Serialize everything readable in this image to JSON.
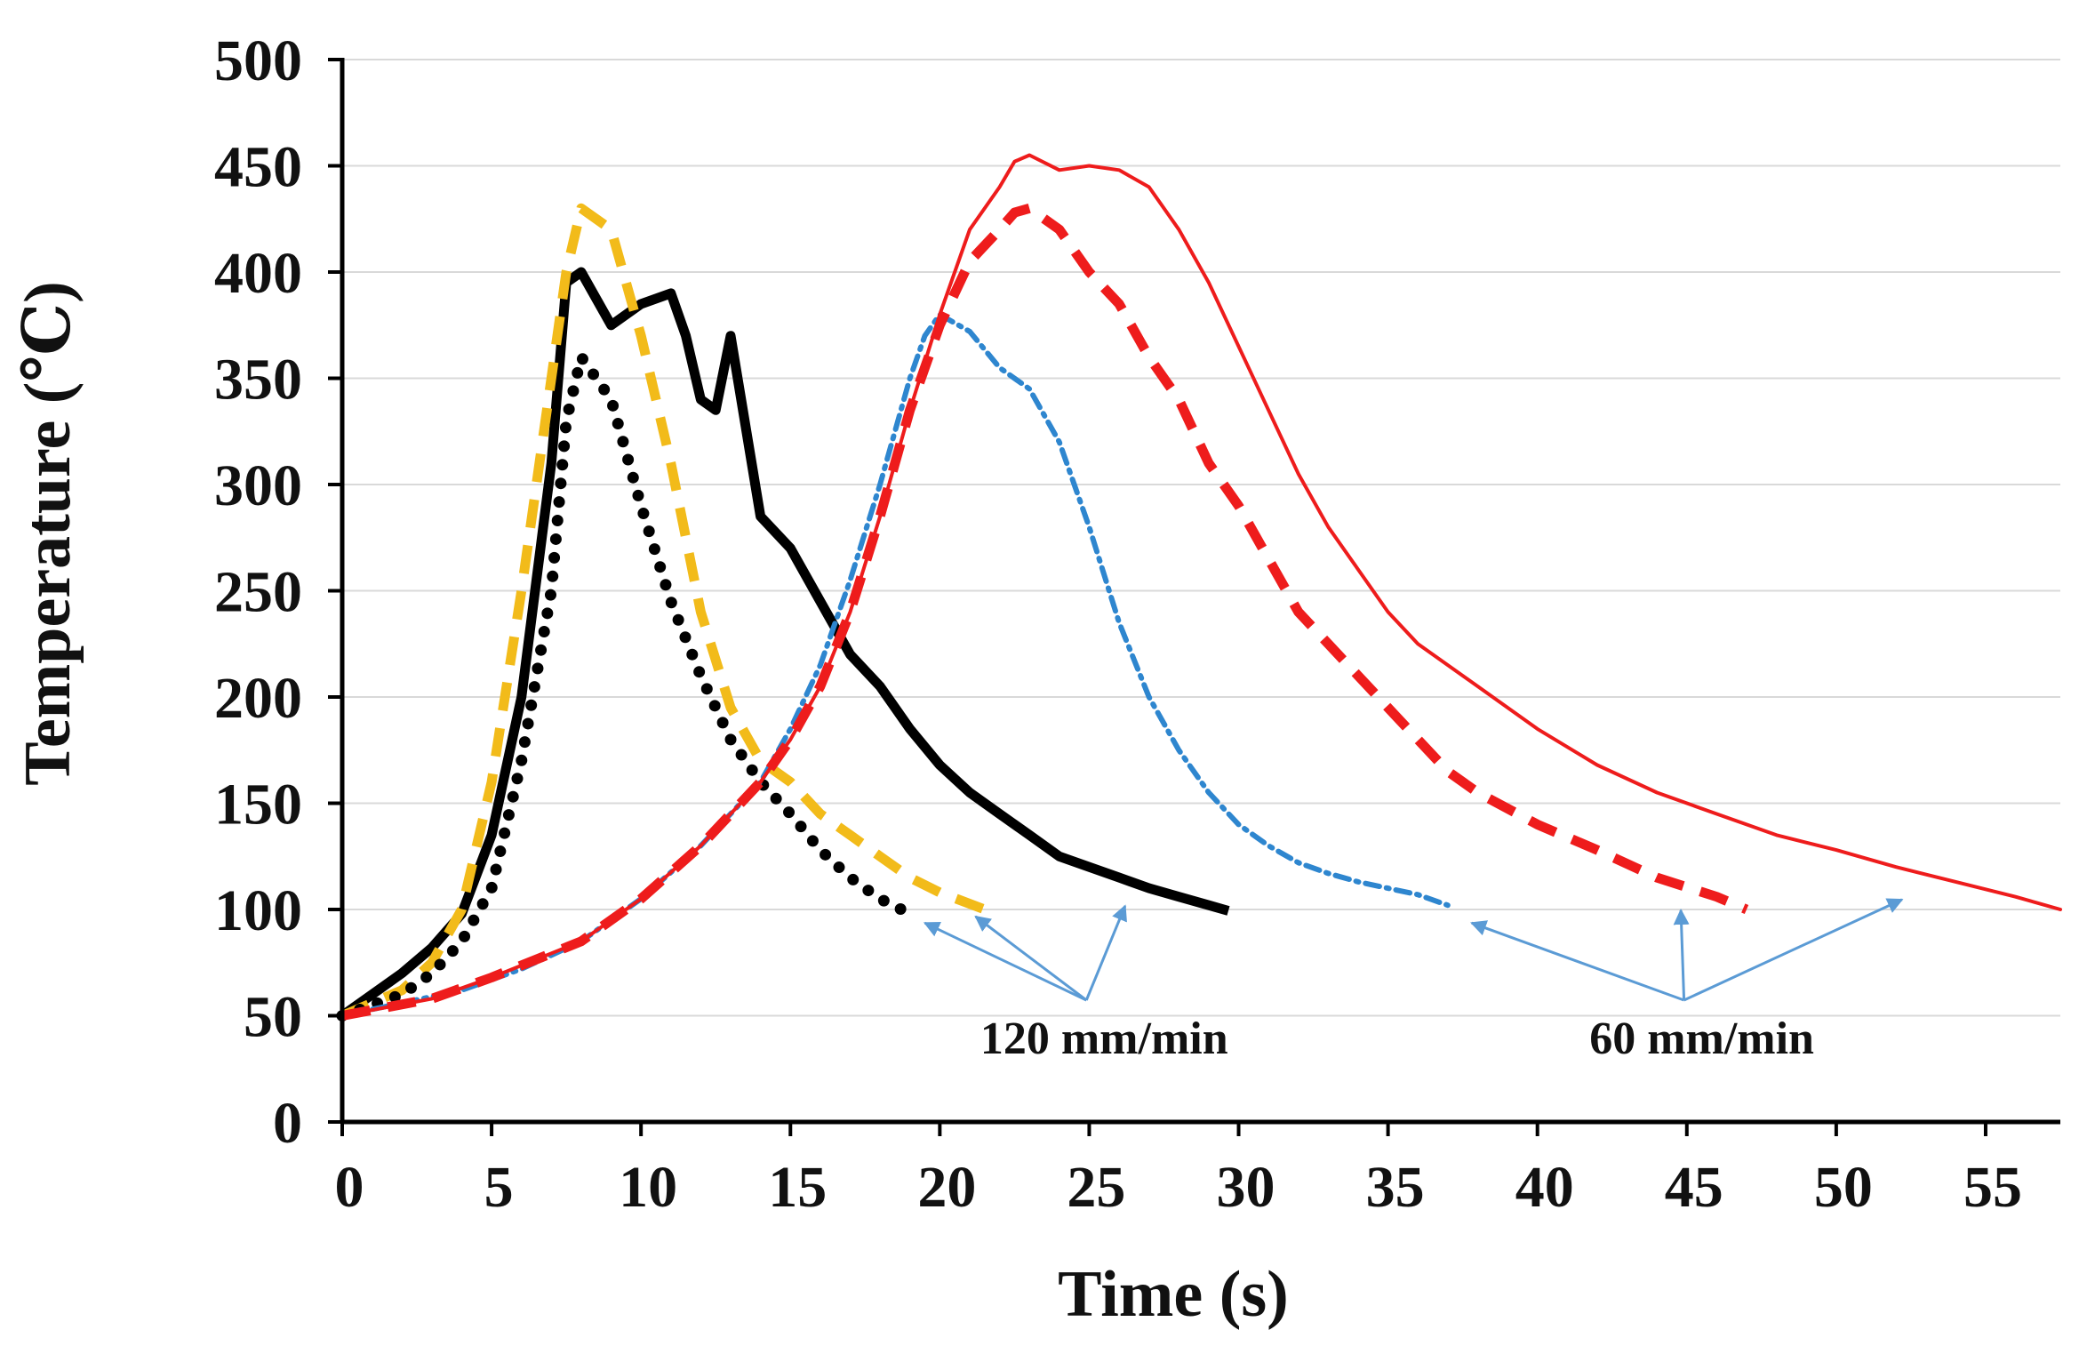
{
  "chart_data": {
    "type": "line",
    "title": "",
    "xlabel": "Time (s)",
    "ylabel": "Temperature (℃)",
    "xlim": [
      0,
      57.5
    ],
    "ylim": [
      0,
      500
    ],
    "xticks": [
      0,
      5,
      10,
      15,
      20,
      25,
      30,
      35,
      40,
      45,
      50,
      55
    ],
    "yticks": [
      0,
      50,
      100,
      150,
      200,
      250,
      300,
      350,
      400,
      450,
      500
    ],
    "grid": "horizontal",
    "colors": {
      "black": "#000000",
      "gold": "#f2bb1a",
      "blue": "#2e86cf",
      "red": "#ee1c1c",
      "annotation": "#5b9bd5",
      "grid": "#d9d9d9"
    },
    "series": [
      {
        "name": "120 mm/min solid black",
        "color": "#000000",
        "style": "solid-thick",
        "x": [
          0,
          1,
          2,
          3,
          4,
          5,
          6,
          7,
          7.5,
          8,
          9,
          10,
          11,
          11.5,
          12,
          12.5,
          13,
          14,
          15,
          16,
          17,
          18,
          19,
          20,
          21,
          22,
          23,
          24,
          25,
          26,
          27,
          28,
          29,
          29.5
        ],
        "y": [
          50,
          60,
          70,
          82,
          98,
          135,
          200,
          310,
          395,
          400,
          375,
          385,
          390,
          370,
          340,
          335,
          370,
          285,
          270,
          245,
          220,
          205,
          185,
          168,
          155,
          145,
          135,
          125,
          120,
          115,
          110,
          106,
          102,
          100
        ]
      },
      {
        "name": "120 mm/min dashed gold",
        "color": "#f2bb1a",
        "style": "dashed",
        "x": [
          0,
          2,
          3,
          4,
          5,
          6,
          7,
          7.5,
          8,
          9,
          10,
          11,
          12,
          13,
          14,
          15,
          16,
          17,
          18,
          19,
          20,
          21.5
        ],
        "y": [
          50,
          62,
          75,
          100,
          160,
          250,
          350,
          400,
          430,
          420,
          370,
          310,
          240,
          195,
          170,
          160,
          145,
          135,
          125,
          115,
          108,
          100
        ]
      },
      {
        "name": "120 mm/min dotted black",
        "color": "#000000",
        "style": "dotted",
        "x": [
          0,
          2,
          3,
          4,
          5,
          6,
          7,
          7.5,
          8,
          9,
          10,
          11,
          12,
          13,
          14,
          15,
          16,
          17,
          18,
          19
        ],
        "y": [
          50,
          60,
          70,
          85,
          110,
          170,
          250,
          330,
          360,
          340,
          290,
          245,
          210,
          180,
          160,
          145,
          128,
          115,
          105,
          98
        ]
      },
      {
        "name": "60 mm/min dash-dot blue",
        "color": "#2e86cf",
        "style": "dash-dot",
        "x": [
          0,
          2,
          4,
          6,
          8,
          10,
          12,
          14,
          15,
          16,
          17,
          18,
          19,
          19.5,
          20,
          21,
          22,
          23,
          24,
          25,
          26,
          27,
          28,
          29,
          30,
          31,
          32,
          33,
          34,
          35,
          36,
          37
        ],
        "y": [
          50,
          56,
          62,
          72,
          85,
          105,
          130,
          160,
          185,
          215,
          255,
          300,
          350,
          370,
          380,
          372,
          355,
          345,
          320,
          280,
          235,
          200,
          175,
          155,
          140,
          130,
          122,
          117,
          113,
          110,
          107,
          102
        ]
      },
      {
        "name": "60 mm/min dashed red",
        "color": "#ee1c1c",
        "style": "dashed",
        "x": [
          0,
          3,
          5,
          8,
          10,
          12,
          14,
          15,
          16,
          17,
          18,
          19,
          20,
          21,
          22,
          22.5,
          23,
          24,
          25,
          26,
          27,
          28,
          29,
          30,
          31,
          32,
          33,
          34,
          35,
          36,
          37,
          38,
          40,
          42,
          44,
          46,
          47
        ],
        "y": [
          50,
          58,
          68,
          85,
          105,
          130,
          160,
          180,
          205,
          240,
          285,
          335,
          375,
          405,
          420,
          428,
          430,
          420,
          400,
          385,
          360,
          340,
          310,
          290,
          265,
          240,
          225,
          210,
          195,
          180,
          165,
          155,
          140,
          128,
          115,
          106,
          100
        ]
      },
      {
        "name": "60 mm/min solid red",
        "color": "#ee1c1c",
        "style": "solid-thin",
        "x": [
          0,
          3,
          5,
          8,
          10,
          12,
          14,
          15,
          16,
          17,
          18,
          19,
          20,
          21,
          22,
          22.5,
          23,
          24,
          25,
          26,
          27,
          28,
          29,
          30,
          31,
          32,
          33,
          34,
          35,
          36,
          38,
          40,
          42,
          44,
          46,
          48,
          50,
          52,
          54,
          56,
          57.5
        ],
        "y": [
          50,
          58,
          68,
          85,
          105,
          130,
          160,
          180,
          205,
          240,
          285,
          335,
          380,
          420,
          440,
          452,
          455,
          448,
          450,
          448,
          440,
          420,
          395,
          365,
          335,
          305,
          280,
          260,
          240,
          225,
          205,
          185,
          168,
          155,
          145,
          135,
          128,
          120,
          113,
          106,
          100
        ]
      }
    ],
    "annotations": [
      {
        "text": "120 mm/min",
        "x": 25.5,
        "y": 45,
        "arrow_targets": [
          [
            19.5,
            97
          ],
          [
            21.2,
            100
          ],
          [
            26.2,
            105
          ]
        ]
      },
      {
        "text": "60 mm/min",
        "x": 45.5,
        "y": 45,
        "arrow_targets": [
          [
            37.8,
            97
          ],
          [
            44.8,
            103
          ],
          [
            52.2,
            108
          ]
        ]
      }
    ]
  }
}
